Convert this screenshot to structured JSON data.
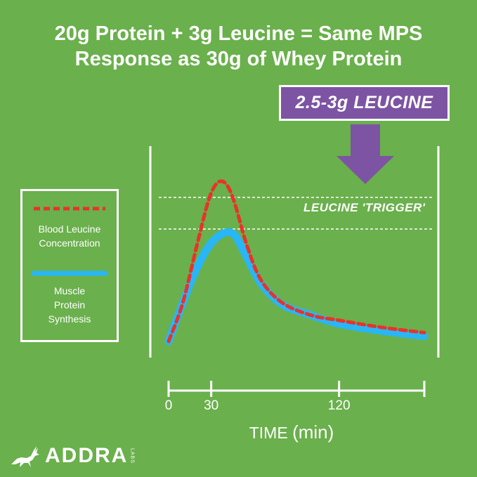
{
  "title": {
    "line1": "20g Protein + 3g Leucine = Same MPS",
    "line2": "Response as 30g of Whey Protein"
  },
  "callout": {
    "label": "2.5-3g LEUCINE",
    "color": "#7d54a3"
  },
  "trigger_label": "LEUCINE 'TRIGGER'",
  "legend": {
    "leucine": {
      "line1": "Blood Leucine",
      "line2": "Concentration"
    },
    "mps": {
      "line1": "Muscle",
      "line2": "Protein",
      "line3": "Synthesis"
    }
  },
  "logo": {
    "name": "ADDRA",
    "suffix": "LABS"
  },
  "colors": {
    "background": "#6ab04c",
    "leucine_line": "#e8332a",
    "mps_line": "#29b6f6",
    "accent": "#7d54a3"
  },
  "chart_data": {
    "type": "line",
    "xlabel": "TIME",
    "xunit": "(min)",
    "xticks": [
      {
        "value": 0,
        "label": "0"
      },
      {
        "value": 30,
        "label": "30"
      },
      {
        "value": 120,
        "label": "120"
      }
    ],
    "xlim": [
      0,
      180
    ],
    "ylim": [
      0,
      100
    ],
    "y_axis_labeled": false,
    "trigger_band": [
      64,
      82
    ],
    "series": [
      {
        "name": "Blood Leucine Concentration",
        "style": "dashed",
        "color": "#e8332a",
        "points": [
          [
            0,
            0
          ],
          [
            10,
            22
          ],
          [
            20,
            55
          ],
          [
            28,
            80
          ],
          [
            34,
            90
          ],
          [
            40,
            90
          ],
          [
            46,
            80
          ],
          [
            55,
            55
          ],
          [
            65,
            35
          ],
          [
            80,
            22
          ],
          [
            100,
            15
          ],
          [
            120,
            12
          ],
          [
            150,
            8
          ],
          [
            180,
            5
          ]
        ]
      },
      {
        "name": "Muscle Protein Synthesis",
        "style": "solid",
        "color": "#29b6f6",
        "points": [
          [
            0,
            0
          ],
          [
            10,
            22
          ],
          [
            20,
            42
          ],
          [
            30,
            56
          ],
          [
            40,
            62
          ],
          [
            47,
            60
          ],
          [
            55,
            48
          ],
          [
            65,
            33
          ],
          [
            80,
            21
          ],
          [
            100,
            15
          ],
          [
            120,
            10
          ],
          [
            150,
            6
          ],
          [
            180,
            3
          ]
        ]
      }
    ]
  }
}
